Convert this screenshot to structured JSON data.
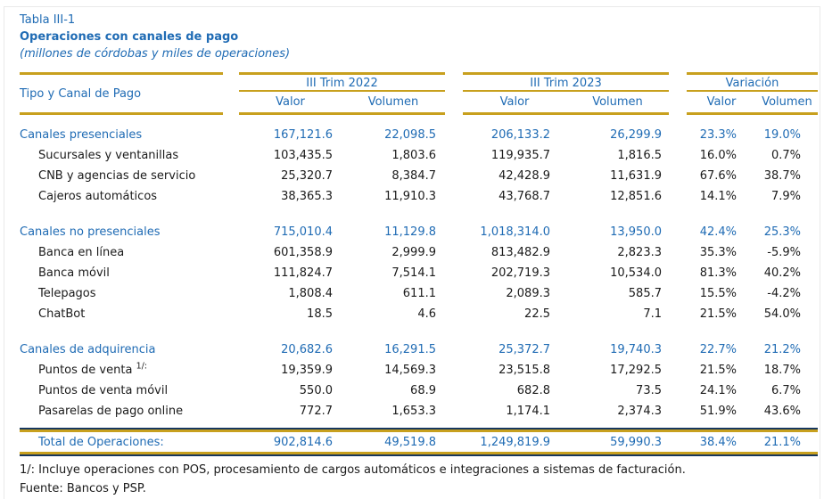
{
  "page": {
    "table_label": "Tabla III-1",
    "title": "Operaciones con canales de pago",
    "subtitle": "(millones de córdobas y miles de operaciones)"
  },
  "table": {
    "row_header": "Tipo y Canal de Pago",
    "col_groups": [
      {
        "label": "III Trim 2022",
        "sub": [
          "Valor",
          "Volumen"
        ]
      },
      {
        "label": "III Trim 2023",
        "sub": [
          "Valor",
          "Volumen"
        ]
      },
      {
        "label": "Variación",
        "sub": [
          "Valor",
          "Volumen"
        ]
      }
    ],
    "rows": [
      {
        "label": "Canales presenciales",
        "section": true,
        "cells": [
          "167,121.6",
          "22,098.5",
          "206,133.2",
          "26,299.9",
          "23.3%",
          "19.0%"
        ]
      },
      {
        "label": "Sucursales y ventanillas",
        "cells": [
          "103,435.5",
          "1,803.6",
          "119,935.7",
          "1,816.5",
          "16.0%",
          "0.7%"
        ]
      },
      {
        "label": "CNB y agencias de servicio",
        "cells": [
          "25,320.7",
          "8,384.7",
          "42,428.9",
          "11,631.9",
          "67.6%",
          "38.7%"
        ]
      },
      {
        "label": "Cajeros automáticos",
        "cells": [
          "38,365.3",
          "11,910.3",
          "43,768.7",
          "12,851.6",
          "14.1%",
          "7.9%"
        ]
      },
      {
        "label": "Canales no presenciales",
        "section": true,
        "spacer_before": true,
        "cells": [
          "715,010.4",
          "11,129.8",
          "1,018,314.0",
          "13,950.0",
          "42.4%",
          "25.3%"
        ]
      },
      {
        "label": "Banca en línea",
        "cells": [
          "601,358.9",
          "2,999.9",
          "813,482.9",
          "2,823.3",
          "35.3%",
          "-5.9%"
        ]
      },
      {
        "label": "Banca móvil",
        "cells": [
          "111,824.7",
          "7,514.1",
          "202,719.3",
          "10,534.0",
          "81.3%",
          "40.2%"
        ]
      },
      {
        "label": "Telepagos",
        "cells": [
          "1,808.4",
          "611.1",
          "2,089.3",
          "585.7",
          "15.5%",
          "-4.2%"
        ]
      },
      {
        "label": "ChatBot",
        "cells": [
          "18.5",
          "4.6",
          "22.5",
          "7.1",
          "21.5%",
          "54.0%"
        ]
      },
      {
        "label": "Canales de adquirencia",
        "section": true,
        "spacer_before": true,
        "cells": [
          "20,682.6",
          "16,291.5",
          "25,372.7",
          "19,740.3",
          "22.7%",
          "21.2%"
        ]
      },
      {
        "label": "Puntos de venta ",
        "sup": "1/:",
        "cells": [
          "19,359.9",
          "14,569.3",
          "23,515.8",
          "17,292.5",
          "21.5%",
          "18.7%"
        ]
      },
      {
        "label": "Puntos de venta móvil",
        "cells": [
          "550.0",
          "68.9",
          "682.8",
          "73.5",
          "24.1%",
          "6.7%"
        ]
      },
      {
        "label": "Pasarelas de pago online",
        "cells": [
          "772.7",
          "1,653.3",
          "1,174.1",
          "2,374.3",
          "51.9%",
          "43.6%"
        ]
      }
    ],
    "total": {
      "label": "Total de Operaciones:",
      "cells": [
        "902,814.6",
        "49,519.8",
        "1,249,819.9",
        "59,990.3",
        "38.4%",
        "21.1%"
      ]
    }
  },
  "footnotes": [
    "1/: Incluye operaciones con POS, procesamiento de cargos automáticos e integraciones a sistemas de facturación.",
    "Fuente: Bancos y PSP."
  ],
  "colors": {
    "accent_blue": "#1f6bb4",
    "rule_gold": "#c8a01e",
    "rule_navy": "#17375e",
    "body_text": "#1a1a1a"
  }
}
